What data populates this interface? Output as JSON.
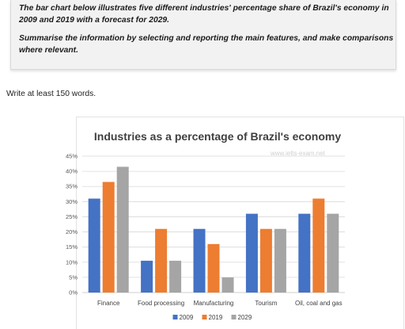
{
  "prompt": {
    "line1": "The bar chart below illustrates five different industries' percentage share of Brazil's economy in 2009 and 2019 with a forecast for 2029.",
    "line2": "Summarise the information by selecting and reporting the main features, and make comparisons where relevant."
  },
  "instruction": "Write at least 150 words.",
  "watermark": "www.ielts-exam.net",
  "chart_data": {
    "type": "bar",
    "title": "Industries as a percentage of Brazil's economy",
    "categories": [
      "Finance",
      "Food processing",
      "Manufacturing",
      "Tourism",
      "Oil, coal and gas"
    ],
    "series": [
      {
        "name": "2009",
        "color": "#4472c4",
        "values": [
          31,
          10.5,
          21,
          26,
          26
        ]
      },
      {
        "name": "2019",
        "color": "#ed7d31",
        "values": [
          36.5,
          21,
          16,
          21,
          31
        ]
      },
      {
        "name": "2029",
        "color": "#a5a5a5",
        "values": [
          41.5,
          10.5,
          5,
          21,
          26
        ]
      }
    ],
    "ylim": [
      0,
      45
    ],
    "yticks": [
      "0%",
      "5%",
      "10%",
      "15%",
      "20%",
      "25%",
      "30%",
      "35%",
      "40%",
      "45%"
    ],
    "grid": true,
    "legend": "bottom"
  }
}
